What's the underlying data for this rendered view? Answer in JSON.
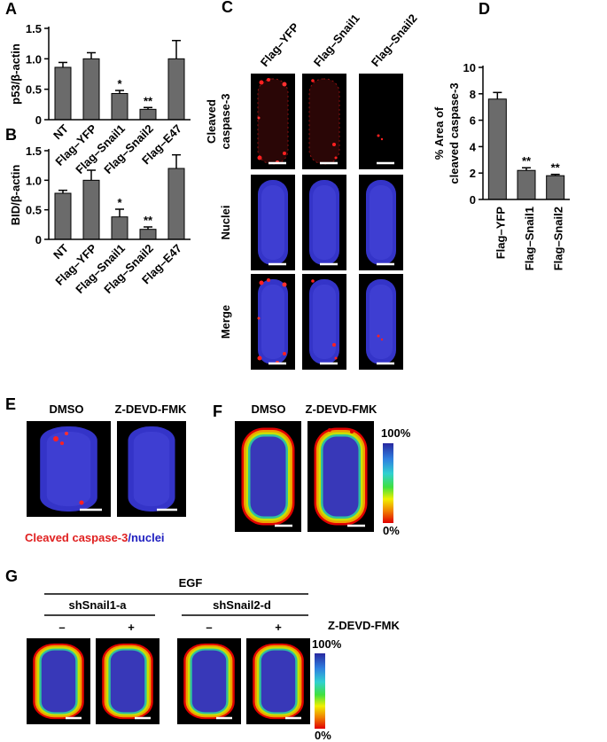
{
  "chart_data": [
    {
      "type": "bar",
      "panel": "A",
      "ylabel": "p53/β-actin",
      "categories": [
        "NT",
        "Flag–YFP",
        "Flag–Snail1",
        "Flag–Snail2",
        "Flag–E47"
      ],
      "values": [
        0.86,
        1.0,
        0.43,
        0.17,
        1.0
      ],
      "errors": [
        0.08,
        0.1,
        0.05,
        0.03,
        0.3
      ],
      "significance": [
        null,
        null,
        "*",
        "**",
        null
      ],
      "color": "#6b6b6b",
      "ylim": [
        0,
        1.5
      ],
      "yticks": [
        0,
        0.5,
        {
          "value": 1,
          "label": "1.0"
        },
        1.5
      ]
    },
    {
      "type": "bar",
      "panel": "B",
      "ylabel": "BID/β-actin",
      "categories": [
        "NT",
        "Flag–YFP",
        "Flag–Snail1",
        "Flag–Snail2",
        "Flag–E47"
      ],
      "values": [
        0.78,
        1.0,
        0.38,
        0.17,
        1.2
      ],
      "errors": [
        0.05,
        0.17,
        0.13,
        0.04,
        0.23
      ],
      "significance": [
        null,
        null,
        "*",
        "**",
        null
      ],
      "color": "#6b6b6b",
      "ylim": [
        0,
        1.5
      ],
      "yticks": [
        0,
        0.5,
        {
          "value": 1,
          "label": "1.0"
        },
        1.5
      ]
    },
    {
      "type": "bar",
      "panel": "D",
      "ylabel": [
        "% Area of",
        "cleaved caspase-3"
      ],
      "categories": [
        "Flag–YFP",
        "Flag–Snail1",
        "Flag–Snail2"
      ],
      "values": [
        7.6,
        2.2,
        1.8
      ],
      "errors": [
        0.5,
        0.2,
        0.1
      ],
      "significance": [
        null,
        "**",
        "**"
      ],
      "color": "#6b6b6b",
      "ylim": [
        0,
        10
      ],
      "yticks": [
        0,
        2,
        4,
        6,
        8,
        10
      ]
    }
  ],
  "panel_C": {
    "label": "C",
    "columns": [
      "Flag–YFP",
      "Flag–Snail1",
      "Flag–Snail2"
    ],
    "rows": [
      [
        "Cleaved",
        "caspase-3"
      ],
      [
        "Nuclei"
      ],
      [
        "Merge"
      ]
    ]
  },
  "panel_E": {
    "label": "E",
    "conditions": [
      "DMSO",
      "Z-DEVD-FMK"
    ],
    "legend_stain": "Cleaved caspase-3",
    "legend_nuclei": "/nuclei"
  },
  "panel_F": {
    "label": "F",
    "conditions": [
      "DMSO",
      "Z-DEVD-FMK"
    ],
    "scale_max": "100%",
    "scale_min": "0%"
  },
  "panel_G": {
    "label": "G",
    "treatment": "EGF",
    "groups": [
      "shSnail1-a",
      "shSnail2-d"
    ],
    "signs": [
      "–",
      "+",
      "–",
      "+"
    ],
    "inhibitor": "Z-DEVD-FMK",
    "scale_max": "100%",
    "scale_min": "0%"
  }
}
